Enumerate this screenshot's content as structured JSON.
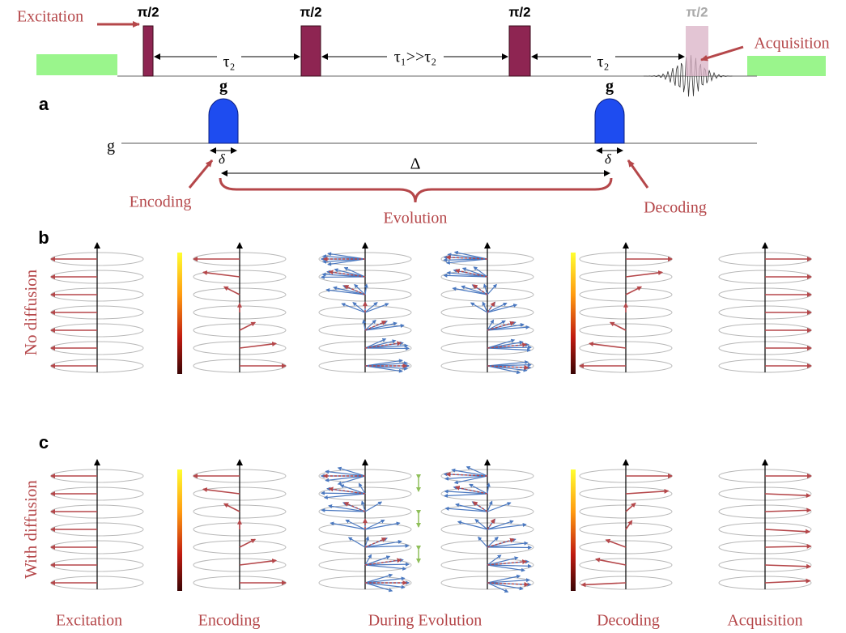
{
  "sequence": {
    "excitation_label": "Excitation",
    "pulses": [
      "π/2",
      "π/2",
      "π/2",
      "π/2"
    ],
    "acquisition_label": "Acquisition",
    "delays": [
      "τ₂",
      "τ₁>>τ₂",
      "τ₂"
    ]
  },
  "gradient": {
    "panel_label": "a",
    "pulse_labels": [
      "g",
      "g"
    ],
    "axis_label": "g",
    "durations": [
      "δ",
      "δ"
    ],
    "separation": "Δ",
    "encoding": "Encoding",
    "decoding": "Decoding",
    "evolution": "Evolution"
  },
  "panels": [
    {
      "label": "b",
      "row_label": "No diffusion"
    },
    {
      "label": "c",
      "row_label": "With diffusion"
    }
  ],
  "stages": [
    "Excitation",
    "Encoding",
    "During Evolution",
    "Decoding",
    "Acquisition"
  ]
}
